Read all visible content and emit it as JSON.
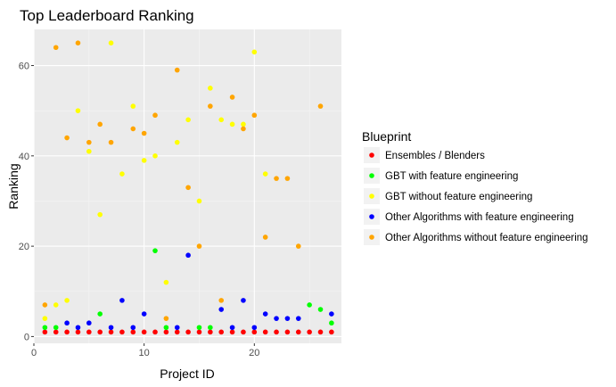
{
  "chart_data": {
    "type": "scatter",
    "title": "Top Leaderboard Ranking",
    "xlabel": "Project ID",
    "ylabel": "Ranking",
    "xlim": [
      0,
      27.9
    ],
    "ylim": [
      -1.5,
      68
    ],
    "xticks": [
      0,
      10,
      20
    ],
    "yticks": [
      0,
      20,
      40,
      60
    ],
    "grid": true,
    "legend": {
      "title": "Blueprint",
      "position": "right"
    },
    "series": [
      {
        "name": "Ensembles / Blenders",
        "color": "#ff0000",
        "points": [
          [
            1,
            1
          ],
          [
            2,
            1
          ],
          [
            3,
            1
          ],
          [
            4,
            1
          ],
          [
            5,
            1
          ],
          [
            6,
            1
          ],
          [
            7,
            1
          ],
          [
            8,
            1
          ],
          [
            9,
            1
          ],
          [
            10,
            1
          ],
          [
            11,
            1
          ],
          [
            12,
            1
          ],
          [
            13,
            1
          ],
          [
            14,
            1
          ],
          [
            15,
            1
          ],
          [
            16,
            1
          ],
          [
            17,
            1
          ],
          [
            18,
            1
          ],
          [
            19,
            1
          ],
          [
            20,
            1
          ],
          [
            21,
            1
          ],
          [
            22,
            1
          ],
          [
            23,
            1
          ],
          [
            24,
            1
          ],
          [
            25,
            1
          ],
          [
            26,
            1
          ],
          [
            27,
            1
          ]
        ]
      },
      {
        "name": "GBT with feature engineering",
        "color": "#00ff00",
        "points": [
          [
            1,
            2
          ],
          [
            2,
            2
          ],
          [
            6,
            5
          ],
          [
            11,
            19
          ],
          [
            12,
            2
          ],
          [
            15,
            2
          ],
          [
            16,
            2
          ],
          [
            25,
            7
          ],
          [
            26,
            6
          ],
          [
            27,
            3
          ]
        ]
      },
      {
        "name": "GBT without feature engineering",
        "color": "#ffff00",
        "points": [
          [
            1,
            4
          ],
          [
            2,
            7
          ],
          [
            3,
            8
          ],
          [
            4,
            50
          ],
          [
            5,
            41
          ],
          [
            6,
            27
          ],
          [
            7,
            65
          ],
          [
            8,
            36
          ],
          [
            9,
            51
          ],
          [
            10,
            39
          ],
          [
            11,
            40
          ],
          [
            12,
            12
          ],
          [
            13,
            43
          ],
          [
            14,
            48
          ],
          [
            15,
            30
          ],
          [
            16,
            55
          ],
          [
            17,
            48
          ],
          [
            18,
            47
          ],
          [
            19,
            47
          ],
          [
            20,
            63
          ],
          [
            21,
            36
          ]
        ]
      },
      {
        "name": "Other Algorithms with feature engineering",
        "color": "#0000ff",
        "points": [
          [
            3,
            3
          ],
          [
            4,
            2
          ],
          [
            5,
            3
          ],
          [
            7,
            2
          ],
          [
            8,
            8
          ],
          [
            9,
            2
          ],
          [
            10,
            5
          ],
          [
            13,
            2
          ],
          [
            14,
            18
          ],
          [
            17,
            6
          ],
          [
            18,
            2
          ],
          [
            19,
            8
          ],
          [
            20,
            2
          ],
          [
            21,
            5
          ],
          [
            22,
            4
          ],
          [
            23,
            4
          ],
          [
            24,
            4
          ],
          [
            27,
            5
          ]
        ]
      },
      {
        "name": "Other Algorithms without feature engineering",
        "color": "#ffa500",
        "points": [
          [
            1,
            7
          ],
          [
            2,
            64
          ],
          [
            3,
            44
          ],
          [
            4,
            65
          ],
          [
            5,
            43
          ],
          [
            6,
            47
          ],
          [
            7,
            43
          ],
          [
            9,
            46
          ],
          [
            10,
            45
          ],
          [
            11,
            49
          ],
          [
            12,
            4
          ],
          [
            13,
            59
          ],
          [
            14,
            33
          ],
          [
            15,
            20
          ],
          [
            16,
            51
          ],
          [
            17,
            8
          ],
          [
            18,
            53
          ],
          [
            19,
            46
          ],
          [
            20,
            49
          ],
          [
            21,
            22
          ],
          [
            22,
            35
          ],
          [
            23,
            35
          ],
          [
            24,
            20
          ],
          [
            26,
            51
          ]
        ]
      }
    ]
  }
}
